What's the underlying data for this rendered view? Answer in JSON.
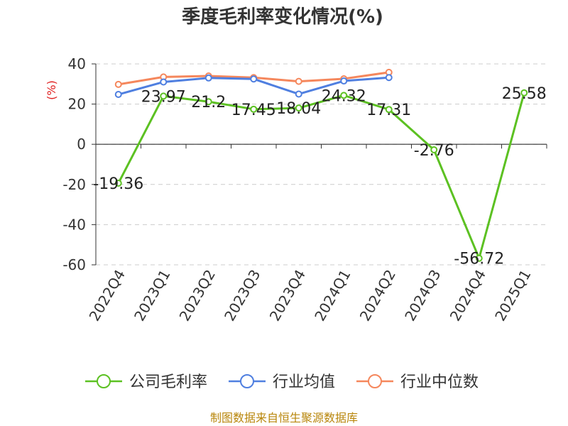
{
  "chart_data": {
    "type": "line",
    "title": "季度毛利率变化情况(%)",
    "ylabel": "(%)",
    "ylim": [
      -60,
      40
    ],
    "yticks": [
      40,
      20,
      0,
      -20,
      -40,
      -60
    ],
    "grid": true,
    "legend_position": "bottom",
    "categories": [
      "2022Q4",
      "2023Q1",
      "2023Q2",
      "2023Q3",
      "2023Q4",
      "2024Q1",
      "2024Q2",
      "2024Q3",
      "2024Q4",
      "2025Q1"
    ],
    "series": [
      {
        "name": "公司毛利率",
        "color": "#5cc122",
        "values": [
          -19.36,
          23.97,
          21.2,
          17.45,
          18.04,
          24.32,
          17.31,
          -2.76,
          -56.72,
          25.58
        ],
        "labels": [
          "-19.36",
          "23.97",
          "21.2",
          "17.45",
          "18.04",
          "24.32",
          "17.31",
          "-2.76",
          "-56.72",
          "25.58"
        ]
      },
      {
        "name": "行业均值",
        "color": "#4f7fe0",
        "values": [
          24.8,
          31.0,
          33.0,
          32.5,
          25.0,
          31.5,
          33.2,
          null,
          null,
          null
        ]
      },
      {
        "name": "行业中位数",
        "color": "#f5875c",
        "values": [
          29.8,
          33.5,
          34.0,
          33.2,
          31.3,
          32.6,
          35.8,
          null,
          null,
          null
        ]
      }
    ]
  },
  "source_text": "制图数据来自恒生聚源数据库"
}
